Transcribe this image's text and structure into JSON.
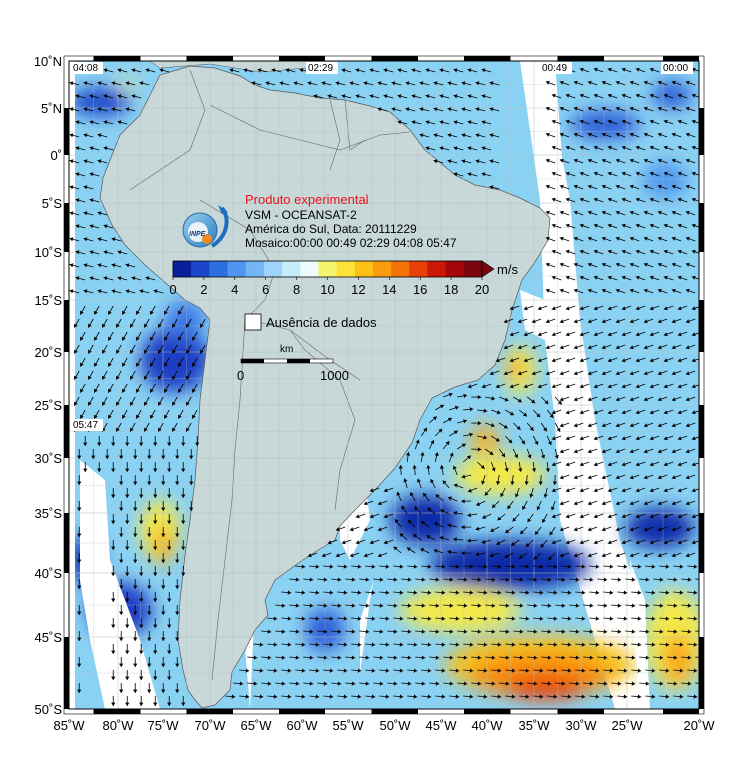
{
  "product": {
    "experimental_label": "Produto experimental",
    "title_line": "VSM - OCEANSAT-2",
    "region_date_line": "América do Sul, Data: 20111229",
    "mosaic_line": "Mosaico:00:00 00:49 02:29 04:08 05:47",
    "logo_text": "INPE"
  },
  "colorbar": {
    "unit": "m/s",
    "tick_labels": [
      "0",
      "2",
      "4",
      "6",
      "8",
      "10",
      "12",
      "14",
      "16",
      "18",
      "20"
    ],
    "colors": [
      "#0a1f9a",
      "#1a45c8",
      "#2d6fe0",
      "#4e95ef",
      "#74b6f5",
      "#9fd3fa",
      "#c6ecfb",
      "#eefcff",
      "#f4f56e",
      "#fde23a",
      "#fcc114",
      "#f99d0e",
      "#f4720a",
      "#e64008",
      "#cc1708",
      "#a3070b",
      "#7a050e"
    ],
    "range": [
      0,
      20
    ]
  },
  "no_data_legend": {
    "label": "Ausência de dados"
  },
  "scalebar": {
    "unit": "km",
    "labels": [
      "0",
      "1000"
    ]
  },
  "pass_labels": [
    "04:08",
    "02:29",
    "00:49",
    "00:00",
    "05:47"
  ],
  "axes": {
    "lat_labels": [
      "10˚N",
      "5˚N",
      "0˚",
      "5˚S",
      "10˚S",
      "15˚S",
      "20˚S",
      "25˚S",
      "30˚S",
      "35˚S",
      "40˚S",
      "45˚S",
      "50˚S"
    ],
    "lon_labels": [
      "85˚W",
      "80˚W",
      "75˚W",
      "70˚W",
      "65˚W",
      "60˚W",
      "55˚W",
      "50˚W",
      "45˚W",
      "40˚W",
      "35˚W",
      "30˚W",
      "25˚W",
      "20˚W"
    ],
    "lat_range": [
      -50,
      10
    ],
    "lon_range": [
      -85,
      -20
    ]
  },
  "colors": {
    "land": "#c8d8d8",
    "grid": "#b0c0c0",
    "no_data": "#ffffff",
    "arrow": "#000000"
  }
}
